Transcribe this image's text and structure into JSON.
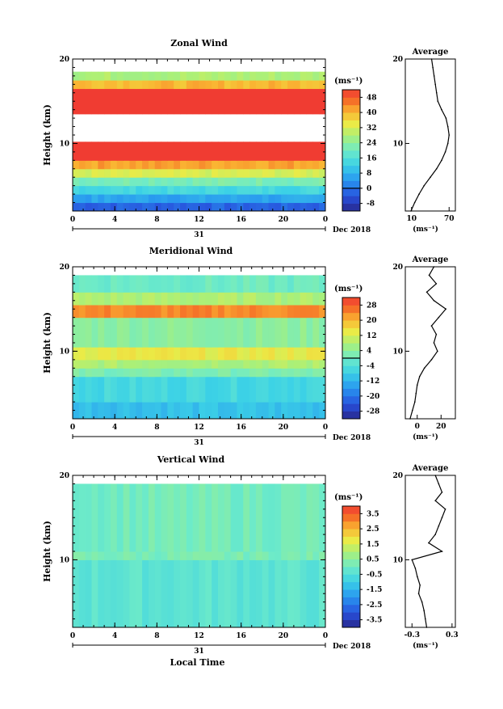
{
  "figure": {
    "common_xlabel": "Local Time",
    "date_label": "Dec 2018",
    "day_label": "31",
    "x_ticks": [
      "0",
      "4",
      "8",
      "12",
      "16",
      "20",
      "0"
    ],
    "y_label": "Height (km)",
    "avg_title": "Average"
  },
  "chart_data": [
    {
      "type": "heatmap",
      "title": "Zonal Wind",
      "xlabel": "",
      "ylabel": "Height (km)",
      "x_range_hours": [
        0,
        24
      ],
      "y_range_km": [
        2,
        20
      ],
      "y_ticks": [
        "10",
        "20"
      ],
      "colorbar": {
        "unit": "(ms⁻¹)",
        "tick_labels": [
          "-8",
          "0",
          "8",
          "16",
          "24",
          "32",
          "40",
          "48"
        ],
        "min": -12,
        "max": 52,
        "zero_line": 0
      },
      "bands": [
        {
          "from_km": 2.0,
          "to_km": 3.0,
          "value": -2
        },
        {
          "from_km": 3.0,
          "to_km": 4.0,
          "value": 6
        },
        {
          "from_km": 4.0,
          "to_km": 5.0,
          "value": 14
        },
        {
          "from_km": 5.0,
          "to_km": 6.0,
          "value": 22
        },
        {
          "from_km": 6.0,
          "to_km": 7.0,
          "value": 32
        },
        {
          "from_km": 7.0,
          "to_km": 8.0,
          "value": 42
        },
        {
          "from_km": 8.0,
          "to_km": 10.2,
          "value": 56
        },
        {
          "from_km": 13.5,
          "to_km": 16.5,
          "value": 56
        },
        {
          "from_km": 16.5,
          "to_km": 17.5,
          "value": 40
        },
        {
          "from_km": 17.5,
          "to_km": 18.5,
          "value": 28
        }
      ],
      "average": {
        "xlim": [
          0,
          80
        ],
        "x_ticks": [
          "10",
          "70"
        ],
        "xlabel": "(ms⁻¹)",
        "y_ticks": [
          "10",
          "20"
        ],
        "profile_km": [
          2,
          3,
          4,
          5,
          6,
          7,
          8,
          9,
          10,
          11,
          12,
          13,
          14,
          15,
          16,
          17,
          18,
          19,
          20
        ],
        "profile_val": [
          9,
          15,
          22,
          30,
          40,
          50,
          58,
          64,
          68,
          70,
          68,
          65,
          58,
          52,
          50,
          48,
          46,
          44,
          42
        ]
      }
    },
    {
      "type": "heatmap",
      "title": "Meridional Wind",
      "xlabel": "",
      "ylabel": "Height (km)",
      "x_range_hours": [
        0,
        24
      ],
      "y_range_km": [
        2,
        20
      ],
      "y_ticks": [
        "10",
        "20"
      ],
      "colorbar": {
        "unit": "(ms⁻¹)",
        "tick_labels": [
          "-28",
          "-20",
          "-12",
          "-4",
          "4",
          "12",
          "20",
          "28"
        ],
        "min": -32,
        "max": 32,
        "zero_line": 0
      },
      "bands": [
        {
          "from_km": 2.0,
          "to_km": 4.0,
          "value": -10
        },
        {
          "from_km": 4.0,
          "to_km": 7.0,
          "value": -6
        },
        {
          "from_km": 7.0,
          "to_km": 8.0,
          "value": 2
        },
        {
          "from_km": 8.0,
          "to_km": 9.0,
          "value": 8
        },
        {
          "from_km": 9.0,
          "to_km": 10.5,
          "value": 14
        },
        {
          "from_km": 10.5,
          "to_km": 14.0,
          "value": 4
        },
        {
          "from_km": 14.0,
          "to_km": 15.5,
          "value": 24
        },
        {
          "from_km": 15.5,
          "to_km": 17.0,
          "value": 8
        },
        {
          "from_km": 17.0,
          "to_km": 19.0,
          "value": 0
        }
      ],
      "average": {
        "xlim": [
          -10,
          32
        ],
        "x_ticks": [
          "0",
          "20"
        ],
        "xlabel": "(ms⁻¹)",
        "y_ticks": [
          "10",
          "20"
        ],
        "profile_km": [
          2,
          3,
          4,
          5,
          6,
          7,
          8,
          9,
          10,
          11,
          12,
          13,
          14,
          15,
          16,
          17,
          18,
          19,
          20
        ],
        "profile_val": [
          -6,
          -4,
          -2,
          -1,
          0,
          2,
          6,
          12,
          17,
          14,
          16,
          12,
          18,
          24,
          14,
          8,
          16,
          10,
          14
        ]
      }
    },
    {
      "type": "heatmap",
      "title": "Vertical Wind",
      "xlabel": "Local Time",
      "ylabel": "Height (km)",
      "x_range_hours": [
        0,
        24
      ],
      "y_range_km": [
        2,
        20
      ],
      "y_ticks": [
        "10",
        "20"
      ],
      "colorbar": {
        "unit": "(ms⁻¹)",
        "tick_labels": [
          "-3.5",
          "-2.5",
          "-1.5",
          "-0.5",
          "0.5",
          "1.5",
          "2.5",
          "3.5"
        ],
        "min": -4,
        "max": 4,
        "zero_line": null
      },
      "bands": [
        {
          "from_km": 2.0,
          "to_km": 10.0,
          "value": -0.3
        },
        {
          "from_km": 10.0,
          "to_km": 11.0,
          "value": 0.2
        },
        {
          "from_km": 11.0,
          "to_km": 19.0,
          "value": 0.1
        }
      ],
      "average": {
        "xlim": [
          -0.4,
          0.35
        ],
        "x_ticks": [
          "-0.3",
          "0.3"
        ],
        "xlabel": "(ms⁻¹)",
        "y_ticks": [
          "10",
          "20"
        ],
        "profile_km": [
          2,
          3,
          4,
          5,
          6,
          7,
          8,
          9,
          10,
          11,
          12,
          13,
          14,
          15,
          16,
          17,
          18,
          19,
          20
        ],
        "profile_val": [
          -0.08,
          -0.1,
          -0.12,
          -0.15,
          -0.2,
          -0.18,
          -0.22,
          -0.25,
          -0.3,
          0.15,
          -0.05,
          0.05,
          0.1,
          0.15,
          0.2,
          0.05,
          0.15,
          0.1,
          0.05
        ]
      }
    }
  ]
}
